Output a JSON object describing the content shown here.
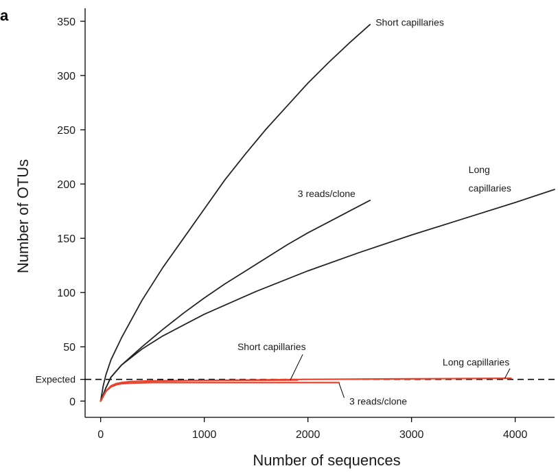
{
  "panel_label": "a",
  "chart_data": {
    "type": "line",
    "title": "",
    "xlabel": "Number of sequences",
    "ylabel": "Number of OTUs",
    "xlim": [
      -150,
      4380
    ],
    "ylim": [
      -15,
      362
    ],
    "xticks": [
      0,
      1000,
      2000,
      3000,
      4000
    ],
    "yticks": [
      0,
      50,
      100,
      150,
      200,
      250,
      300,
      350
    ],
    "grid": false,
    "colors": {
      "black_series": "#222222",
      "red_series": "#e8402a",
      "expected_line": "#000000"
    },
    "reference_line": {
      "label": "Expected",
      "y": 20,
      "style": "dashed"
    },
    "series": [
      {
        "name": "Short capillaries",
        "color": "#222222",
        "x": [
          0,
          25,
          50,
          100,
          200,
          400,
          600,
          800,
          1000,
          1200,
          1400,
          1600,
          1800,
          2000,
          2200,
          2400,
          2600
        ],
        "y": [
          0,
          14,
          24,
          38,
          58,
          93,
          123,
          150,
          177,
          204,
          228,
          251,
          272,
          293,
          312,
          330,
          347
        ]
      },
      {
        "name": "3 reads/clone",
        "color": "#222222",
        "x": [
          0,
          50,
          100,
          200,
          400,
          600,
          800,
          1000,
          1200,
          1400,
          1600,
          1800,
          2000,
          2200,
          2400,
          2600
        ],
        "y": [
          0,
          12,
          22,
          33,
          50,
          66,
          81,
          95,
          108,
          120,
          132,
          144,
          155,
          165,
          175,
          185
        ]
      },
      {
        "name": "Long capillaries",
        "color": "#222222",
        "x": [
          0,
          50,
          100,
          200,
          400,
          600,
          800,
          1000,
          1500,
          2000,
          2500,
          3000,
          3500,
          4000,
          4380
        ],
        "y": [
          0,
          12,
          22,
          33,
          48,
          60,
          70,
          80,
          101,
          120,
          137,
          153,
          168,
          183,
          195
        ]
      },
      {
        "name": "Short capillaries",
        "color": "#e8402a",
        "x": [
          0,
          50,
          100,
          150,
          200,
          300,
          500,
          1000,
          1500,
          1900
        ],
        "y": [
          0,
          9,
          14,
          16,
          17,
          18,
          18.5,
          19,
          19.2,
          19.4
        ]
      },
      {
        "name": "3 reads/clone",
        "color": "#e8402a",
        "x": [
          0,
          50,
          100,
          150,
          200,
          300,
          500,
          1000,
          1500,
          2000,
          2300
        ],
        "y": [
          0,
          9,
          13,
          15,
          16,
          16.5,
          17,
          17,
          17,
          17,
          17
        ]
      },
      {
        "name": "Long capillaries",
        "color": "#e8402a",
        "x": [
          0,
          50,
          100,
          150,
          200,
          300,
          500,
          1000,
          2000,
          3000,
          3960
        ],
        "y": [
          0,
          9,
          14,
          16,
          17,
          18,
          18.5,
          19,
          20,
          20.5,
          21
        ]
      }
    ],
    "annotations": [
      {
        "text": "Short capillaries",
        "group": "black",
        "anchor_x": 2600,
        "anchor_y": 347
      },
      {
        "text": "3 reads/clone",
        "group": "black",
        "anchor_x": 2180,
        "anchor_y": 183
      },
      {
        "text": "Long",
        "group": "black",
        "anchor_x": 3550,
        "anchor_y": 205
      },
      {
        "text": "capillaries",
        "group": "black",
        "anchor_x": 3550,
        "anchor_y": 192
      },
      {
        "text": "Short capillaries",
        "group": "red",
        "anchor_x": 1650,
        "anchor_y": 50
      },
      {
        "text": "Long capillaries",
        "group": "red",
        "anchor_x": 3300,
        "anchor_y": 36
      },
      {
        "text": "3 reads/clone",
        "group": "red",
        "anchor_x": 2400,
        "anchor_y": 0
      }
    ]
  }
}
